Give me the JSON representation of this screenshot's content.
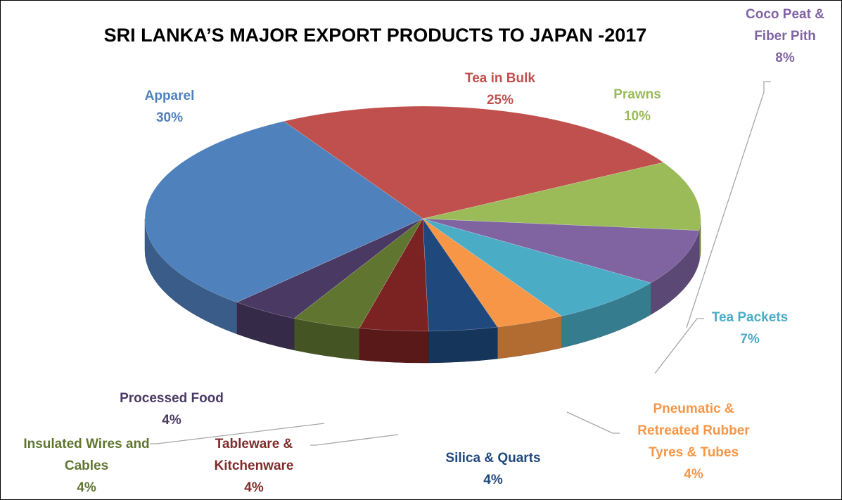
{
  "chart_data": {
    "type": "pie",
    "title": "SRI LANKA’S MAJOR EXPORT PRODUCTS TO JAPAN -2017",
    "categories": [
      "Tea in Bulk",
      "Prawns",
      "Coco Peat & Fiber Pith",
      "Tea Packets",
      "Pneumatic & Retreated Rubber Tyres & Tubes",
      "Silica & Quarts",
      "Tableware & Kitchenware",
      "Insulated Wires and Cables",
      "Processed Food",
      "Apparel"
    ],
    "values": [
      25,
      10,
      8,
      7,
      4,
      4,
      4,
      4,
      4,
      30
    ],
    "value_labels": [
      "25%",
      "10%",
      "8%",
      "7%",
      "4%",
      "4%",
      "4%",
      "4%",
      "4%",
      "30%"
    ],
    "colors": [
      "#c0504d",
      "#9bbb59",
      "#8064a2",
      "#4bacc6",
      "#f79646",
      "#1f497d",
      "#7b2323",
      "#5f7530",
      "#4a3a63",
      "#4f81bd"
    ]
  }
}
